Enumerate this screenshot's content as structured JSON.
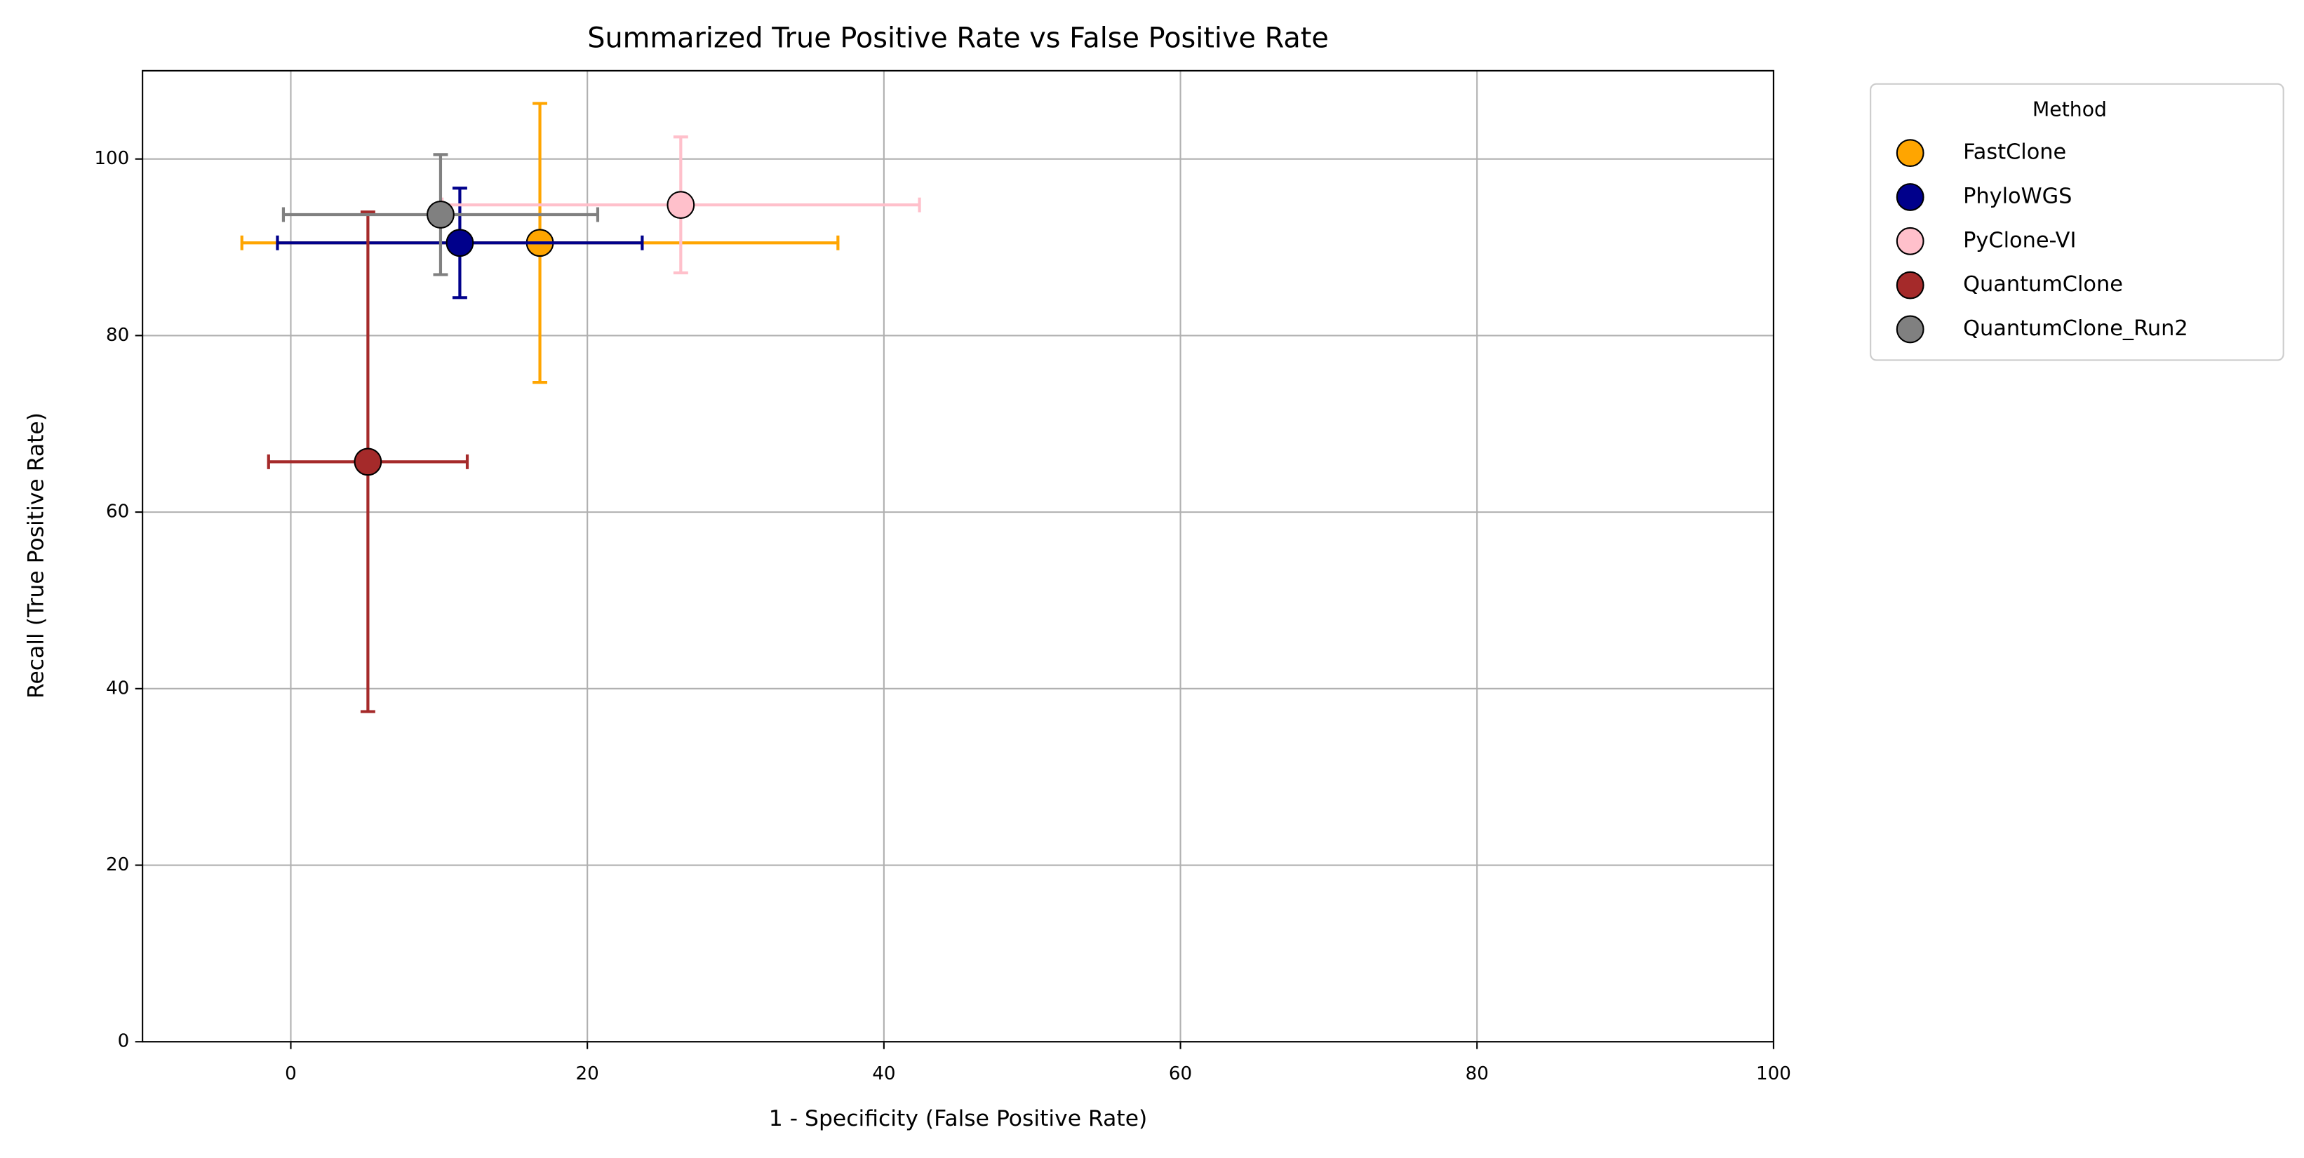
{
  "chart_data": {
    "type": "scatter",
    "title": "Summarized True Positive Rate vs False Positive Rate",
    "xlabel": "1 - Specificity (False Positive Rate)",
    "ylabel": "Recall (True Positive Rate)",
    "xlim": [
      -10,
      100
    ],
    "ylim": [
      0,
      110
    ],
    "xticks": [
      0,
      20,
      40,
      60,
      80,
      100
    ],
    "yticks": [
      0,
      20,
      40,
      60,
      80,
      100
    ],
    "grid": true,
    "legend_title": "Method",
    "legend_position": "outside-right",
    "series": [
      {
        "name": "FastClone",
        "color": "#ffa500",
        "x": [
          16.8
        ],
        "y": [
          90.5
        ],
        "xerr": [
          20.1
        ],
        "yerr": [
          15.8
        ]
      },
      {
        "name": "PhyloWGS",
        "color": "#00008b",
        "x": [
          11.4
        ],
        "y": [
          90.5
        ],
        "xerr": [
          12.3
        ],
        "yerr": [
          6.2
        ]
      },
      {
        "name": "PyClone-VI",
        "color": "#ffc0cb",
        "x": [
          26.3
        ],
        "y": [
          94.8
        ],
        "xerr": [
          16.1
        ],
        "yerr": [
          7.7
        ]
      },
      {
        "name": "QuantumClone",
        "color": "#a52a2a",
        "x": [
          5.2
        ],
        "y": [
          65.7
        ],
        "xerr": [
          6.7
        ],
        "yerr": [
          28.3
        ]
      },
      {
        "name": "QuantumClone_Run2",
        "color": "#808080",
        "x": [
          10.1
        ],
        "y": [
          93.7
        ],
        "xerr": [
          10.6
        ],
        "yerr": [
          6.8
        ]
      }
    ]
  }
}
